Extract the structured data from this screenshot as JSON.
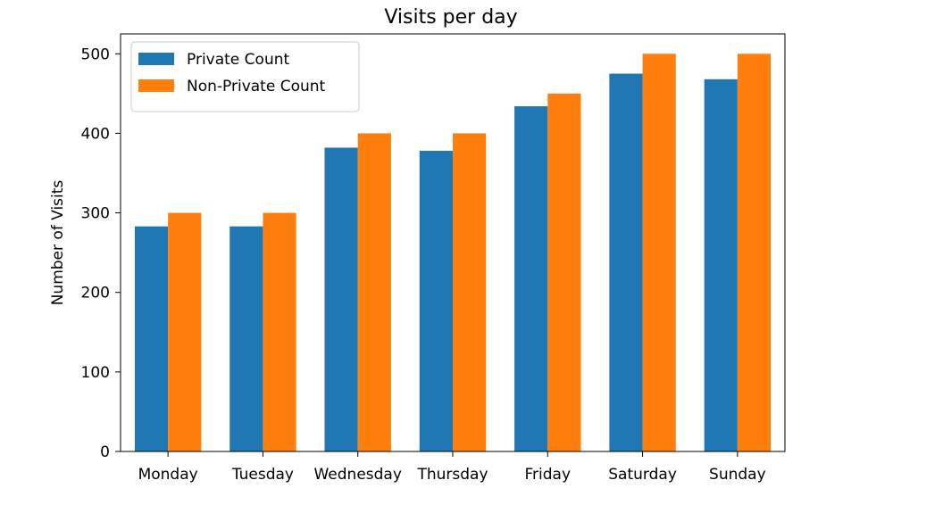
{
  "chart_data": {
    "type": "bar",
    "title": "Visits per day",
    "xlabel": "",
    "ylabel": "Number of Visits",
    "categories": [
      "Monday",
      "Tuesday",
      "Wednesday",
      "Thursday",
      "Friday",
      "Saturday",
      "Sunday"
    ],
    "series": [
      {
        "name": "Private Count",
        "values": [
          283,
          283,
          382,
          378,
          434,
          475,
          468
        ]
      },
      {
        "name": "Non-Private Count",
        "values": [
          300,
          300,
          400,
          400,
          450,
          500,
          500
        ]
      }
    ],
    "ylim": [
      0,
      525
    ],
    "yticks": [
      0,
      100,
      200,
      300,
      400,
      500
    ],
    "legend_position": "top-left",
    "grid": false
  },
  "colors": {
    "series": [
      "#1f77b4",
      "#ff7f0e"
    ],
    "axes": "#000000",
    "background": "#ffffff"
  }
}
